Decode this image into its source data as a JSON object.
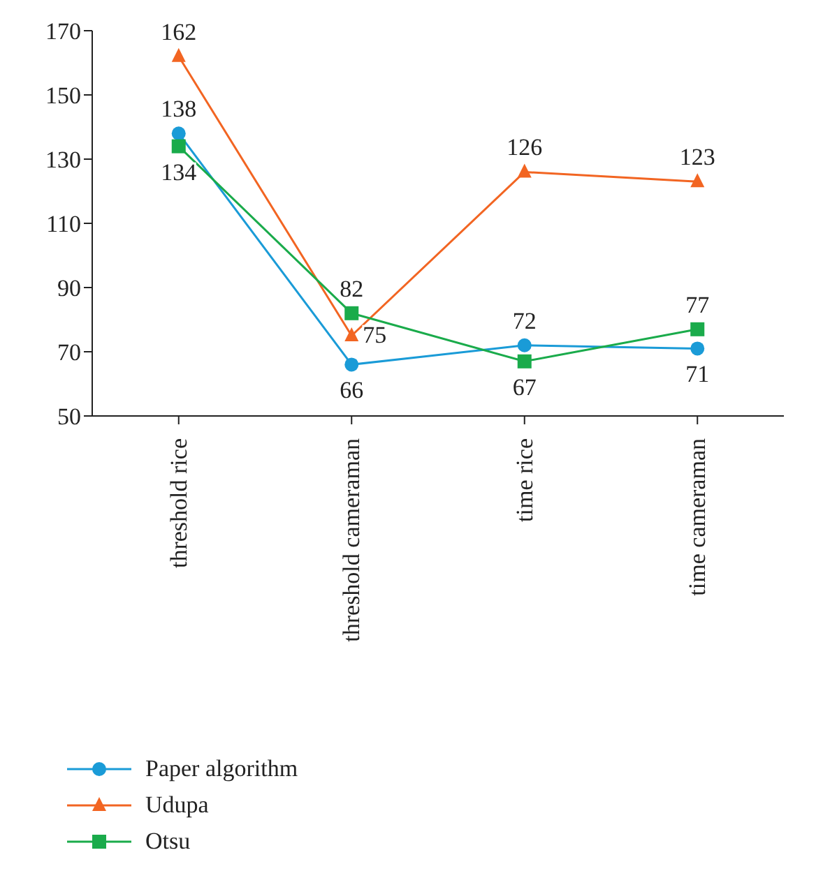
{
  "chart_data": {
    "type": "line",
    "categories": [
      "threshold rice",
      "threshold cameraman",
      "time rice",
      "time cameraman"
    ],
    "series": [
      {
        "name": "Paper algorithm",
        "color": "#1a9bd7",
        "marker": "circle",
        "values": [
          138,
          66,
          72,
          71
        ]
      },
      {
        "name": "Udupa",
        "color": "#f26522",
        "marker": "triangle",
        "values": [
          162,
          75,
          126,
          123
        ]
      },
      {
        "name": "Otsu",
        "color": "#1aab4b",
        "marker": "square",
        "values": [
          134,
          82,
          67,
          77
        ]
      }
    ],
    "ylim": [
      50,
      170
    ],
    "yticks": [
      50,
      70,
      90,
      110,
      130,
      150,
      170
    ],
    "legend": "bottom left",
    "data_labels": true,
    "line_style": "solid"
  }
}
